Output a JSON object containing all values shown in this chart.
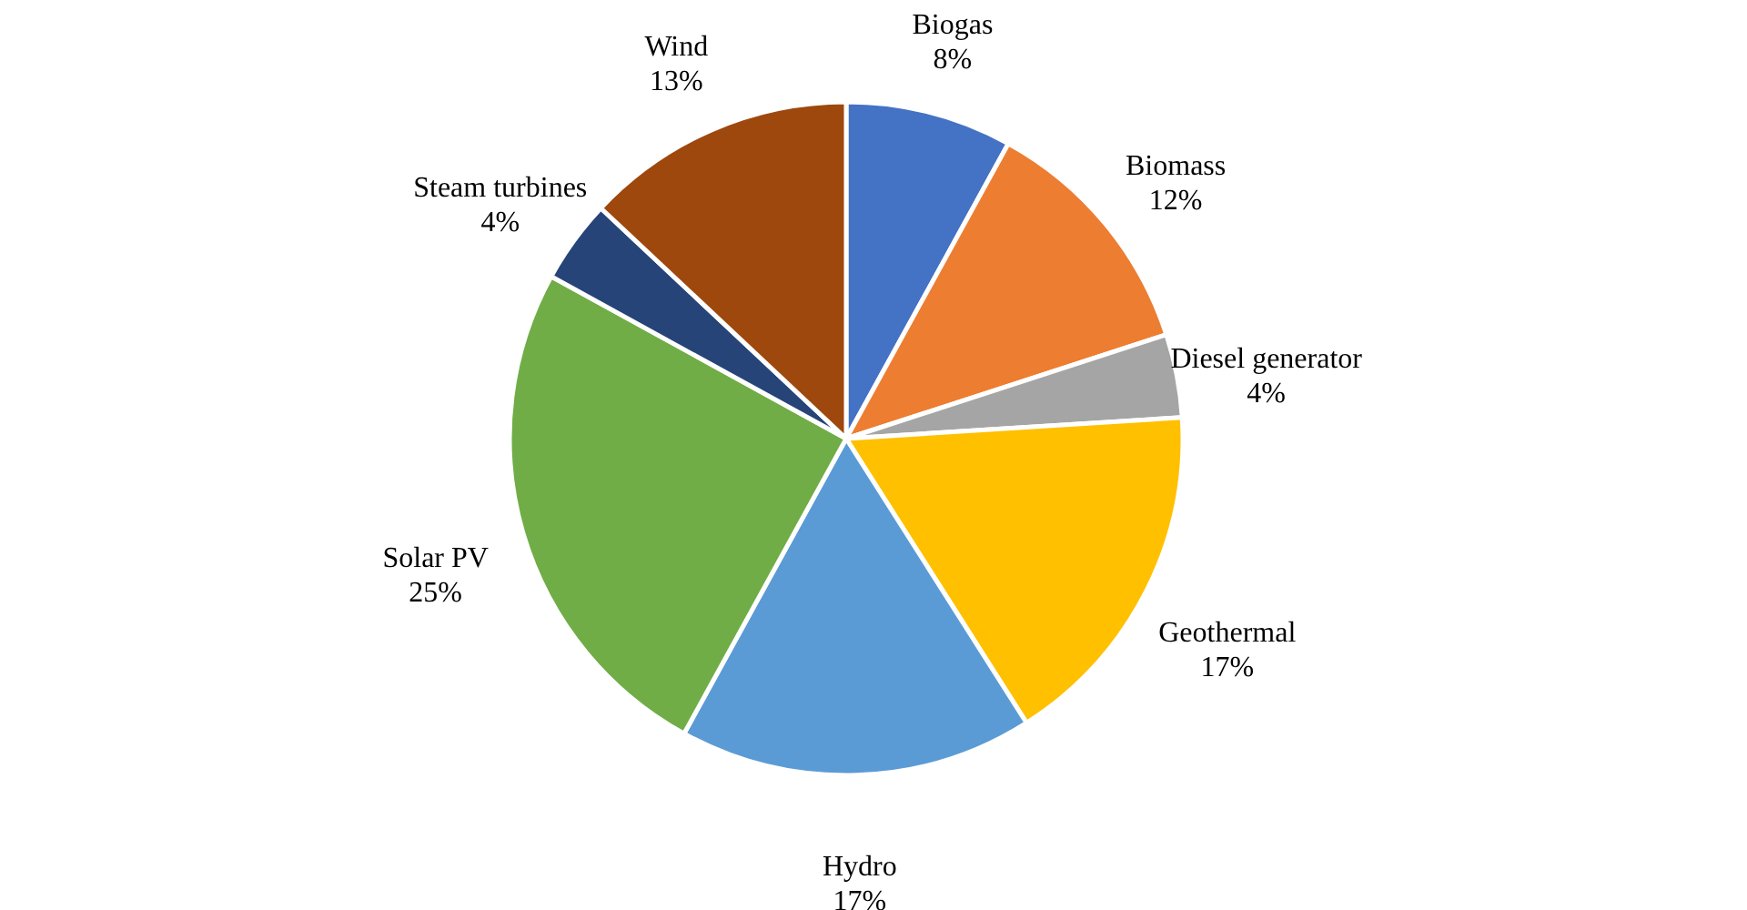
{
  "chart_data": {
    "type": "pie",
    "categories": [
      "Biogas",
      "Biomass",
      "Diesel generator",
      "Geothermal",
      "Hydro",
      "Solar PV",
      "Steam turbines",
      "Wind"
    ],
    "values": [
      8,
      12,
      4,
      17,
      17,
      25,
      4,
      13
    ],
    "value_labels": [
      "8%",
      "12%",
      "4%",
      "17%",
      "17%",
      "25%",
      "4%",
      "13%"
    ],
    "colors": [
      "#4472c4",
      "#ed7d31",
      "#a5a5a5",
      "#ffc000",
      "#5b9bd5",
      "#70ad47",
      "#264478",
      "#9e480e"
    ],
    "legend": false
  }
}
